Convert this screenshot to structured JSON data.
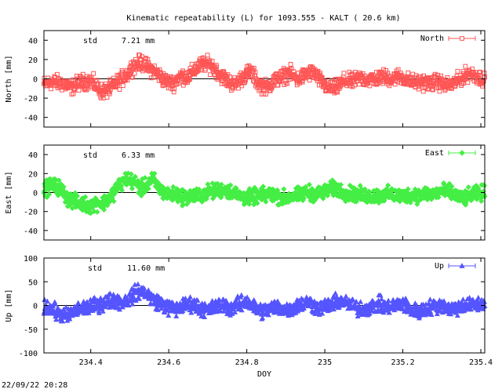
{
  "title": "Kinematic repeatability (L) for 1093.555 - KALT  ( 20.6 km)",
  "footer_timestamp": "22/09/22 20:28",
  "chart_data": [
    {
      "type": "scatter",
      "series_name": "North",
      "ylabel": "North [mm]",
      "std_label": "std",
      "std_value": "7.21 mm",
      "color": "#ff5555",
      "marker": "square",
      "ylim": [
        -50,
        50
      ],
      "yticks": [
        -40,
        -20,
        0,
        20,
        40
      ],
      "xlim": [
        234.28,
        235.41
      ],
      "trend": [
        [
          234.28,
          -6
        ],
        [
          234.3,
          -3
        ],
        [
          234.33,
          -5
        ],
        [
          234.35,
          -9
        ],
        [
          234.37,
          -4
        ],
        [
          234.4,
          -2
        ],
        [
          234.43,
          -14
        ],
        [
          234.45,
          -10
        ],
        [
          234.47,
          -3
        ],
        [
          234.49,
          3
        ],
        [
          234.51,
          14
        ],
        [
          234.53,
          17
        ],
        [
          234.55,
          11
        ],
        [
          234.57,
          6
        ],
        [
          234.59,
          -2
        ],
        [
          234.61,
          -5
        ],
        [
          234.63,
          3
        ],
        [
          234.65,
          2
        ],
        [
          234.67,
          11
        ],
        [
          234.69,
          16
        ],
        [
          234.71,
          14
        ],
        [
          234.73,
          5
        ],
        [
          234.75,
          -2
        ],
        [
          234.77,
          -6
        ],
        [
          234.79,
          2
        ],
        [
          234.81,
          8
        ],
        [
          234.83,
          -5
        ],
        [
          234.85,
          -9
        ],
        [
          234.87,
          -2
        ],
        [
          234.89,
          2
        ],
        [
          234.91,
          6
        ],
        [
          234.93,
          -1
        ],
        [
          234.95,
          4
        ],
        [
          234.97,
          7
        ],
        [
          234.99,
          -3
        ],
        [
          235.01,
          -10
        ],
        [
          235.03,
          -9
        ],
        [
          235.05,
          -2
        ],
        [
          235.07,
          -3
        ],
        [
          235.09,
          1
        ],
        [
          235.11,
          -1
        ],
        [
          235.13,
          0
        ],
        [
          235.15,
          2
        ],
        [
          235.17,
          0
        ],
        [
          235.19,
          3
        ],
        [
          235.21,
          -1
        ],
        [
          235.23,
          -4
        ],
        [
          235.25,
          -3
        ],
        [
          235.27,
          -5
        ],
        [
          235.29,
          -3
        ],
        [
          235.31,
          -7
        ],
        [
          235.33,
          -5
        ],
        [
          235.35,
          1
        ],
        [
          235.37,
          6
        ],
        [
          235.39,
          3
        ],
        [
          235.41,
          -2
        ]
      ]
    },
    {
      "type": "scatter",
      "series_name": "East",
      "ylabel": "East [mm]",
      "std_label": "std",
      "std_value": "6.33 mm",
      "color": "#44ee44",
      "marker": "diamond",
      "ylim": [
        -50,
        50
      ],
      "yticks": [
        -40,
        -20,
        0,
        20,
        40
      ],
      "xlim": [
        234.28,
        235.41
      ],
      "trend": [
        [
          234.28,
          3
        ],
        [
          234.3,
          8
        ],
        [
          234.32,
          5
        ],
        [
          234.34,
          -6
        ],
        [
          234.36,
          -10
        ],
        [
          234.38,
          -12
        ],
        [
          234.4,
          -14
        ],
        [
          234.42,
          -10
        ],
        [
          234.43,
          -12
        ],
        [
          234.45,
          -5
        ],
        [
          234.47,
          7
        ],
        [
          234.49,
          14
        ],
        [
          234.51,
          12
        ],
        [
          234.53,
          4
        ],
        [
          234.54,
          7
        ],
        [
          234.56,
          14
        ],
        [
          234.58,
          2
        ],
        [
          234.6,
          -3
        ],
        [
          234.62,
          -2
        ],
        [
          234.64,
          -5
        ],
        [
          234.66,
          -4
        ],
        [
          234.68,
          -3
        ],
        [
          234.7,
          0
        ],
        [
          234.72,
          2
        ],
        [
          234.74,
          3
        ],
        [
          234.76,
          1
        ],
        [
          234.78,
          -3
        ],
        [
          234.8,
          -6
        ],
        [
          234.82,
          -4
        ],
        [
          234.84,
          -3
        ],
        [
          234.86,
          -2
        ],
        [
          234.88,
          -4
        ],
        [
          234.9,
          -6
        ],
        [
          234.92,
          -4
        ],
        [
          234.94,
          -2
        ],
        [
          234.96,
          0
        ],
        [
          234.98,
          -2
        ],
        [
          235.0,
          1
        ],
        [
          235.02,
          4
        ],
        [
          235.04,
          2
        ],
        [
          235.06,
          -1
        ],
        [
          235.08,
          -2
        ],
        [
          235.1,
          -3
        ],
        [
          235.12,
          -4
        ],
        [
          235.14,
          -3
        ],
        [
          235.16,
          -2
        ],
        [
          235.18,
          -3
        ],
        [
          235.2,
          -4
        ],
        [
          235.22,
          -2
        ],
        [
          235.24,
          -3
        ],
        [
          235.26,
          -1
        ],
        [
          235.28,
          -2
        ],
        [
          235.3,
          2
        ],
        [
          235.32,
          0
        ],
        [
          235.34,
          -4
        ],
        [
          235.36,
          -6
        ],
        [
          235.38,
          -2
        ],
        [
          235.41,
          0
        ]
      ]
    },
    {
      "type": "scatter",
      "series_name": "Up",
      "ylabel": "Up [mm]",
      "std_label": "std",
      "std_value": "11.60 mm",
      "color": "#5555ff",
      "marker": "triangle",
      "ylim": [
        -100,
        100
      ],
      "yticks": [
        -100,
        -50,
        0,
        50,
        100
      ],
      "xlim": [
        234.28,
        235.41
      ],
      "xlabel": "DOY",
      "xticks": [
        234.4,
        234.6,
        234.8,
        235,
        235.2,
        235.4
      ],
      "xtick_labels": [
        "234.4",
        "234.6",
        "234.8",
        "235",
        "235.2",
        "235.4"
      ],
      "trend": [
        [
          234.28,
          0
        ],
        [
          234.3,
          -8
        ],
        [
          234.32,
          -18
        ],
        [
          234.34,
          -22
        ],
        [
          234.36,
          -12
        ],
        [
          234.38,
          -5
        ],
        [
          234.4,
          -3
        ],
        [
          234.42,
          2
        ],
        [
          234.44,
          8
        ],
        [
          234.46,
          12
        ],
        [
          234.48,
          6
        ],
        [
          234.5,
          15
        ],
        [
          234.52,
          30
        ],
        [
          234.54,
          28
        ],
        [
          234.56,
          12
        ],
        [
          234.58,
          5
        ],
        [
          234.6,
          -5
        ],
        [
          234.62,
          -8
        ],
        [
          234.64,
          0
        ],
        [
          234.66,
          4
        ],
        [
          234.68,
          -5
        ],
        [
          234.7,
          -10
        ],
        [
          234.72,
          -3
        ],
        [
          234.74,
          2
        ],
        [
          234.76,
          -6
        ],
        [
          234.78,
          2
        ],
        [
          234.8,
          8
        ],
        [
          234.82,
          -4
        ],
        [
          234.84,
          -12
        ],
        [
          234.86,
          -6
        ],
        [
          234.88,
          -2
        ],
        [
          234.9,
          -10
        ],
        [
          234.92,
          -3
        ],
        [
          234.94,
          2
        ],
        [
          234.96,
          8
        ],
        [
          234.98,
          -6
        ],
        [
          235.0,
          -2
        ],
        [
          235.02,
          4
        ],
        [
          235.04,
          10
        ],
        [
          235.06,
          2
        ],
        [
          235.08,
          -4
        ],
        [
          235.1,
          -8
        ],
        [
          235.12,
          -2
        ],
        [
          235.14,
          2
        ],
        [
          235.16,
          -4
        ],
        [
          235.18,
          0
        ],
        [
          235.2,
          4
        ],
        [
          235.22,
          -8
        ],
        [
          235.24,
          -14
        ],
        [
          235.26,
          -6
        ],
        [
          235.28,
          -2
        ],
        [
          235.3,
          2
        ],
        [
          235.32,
          -8
        ],
        [
          235.34,
          -4
        ],
        [
          235.36,
          2
        ],
        [
          235.38,
          0
        ],
        [
          235.41,
          4
        ]
      ]
    }
  ]
}
